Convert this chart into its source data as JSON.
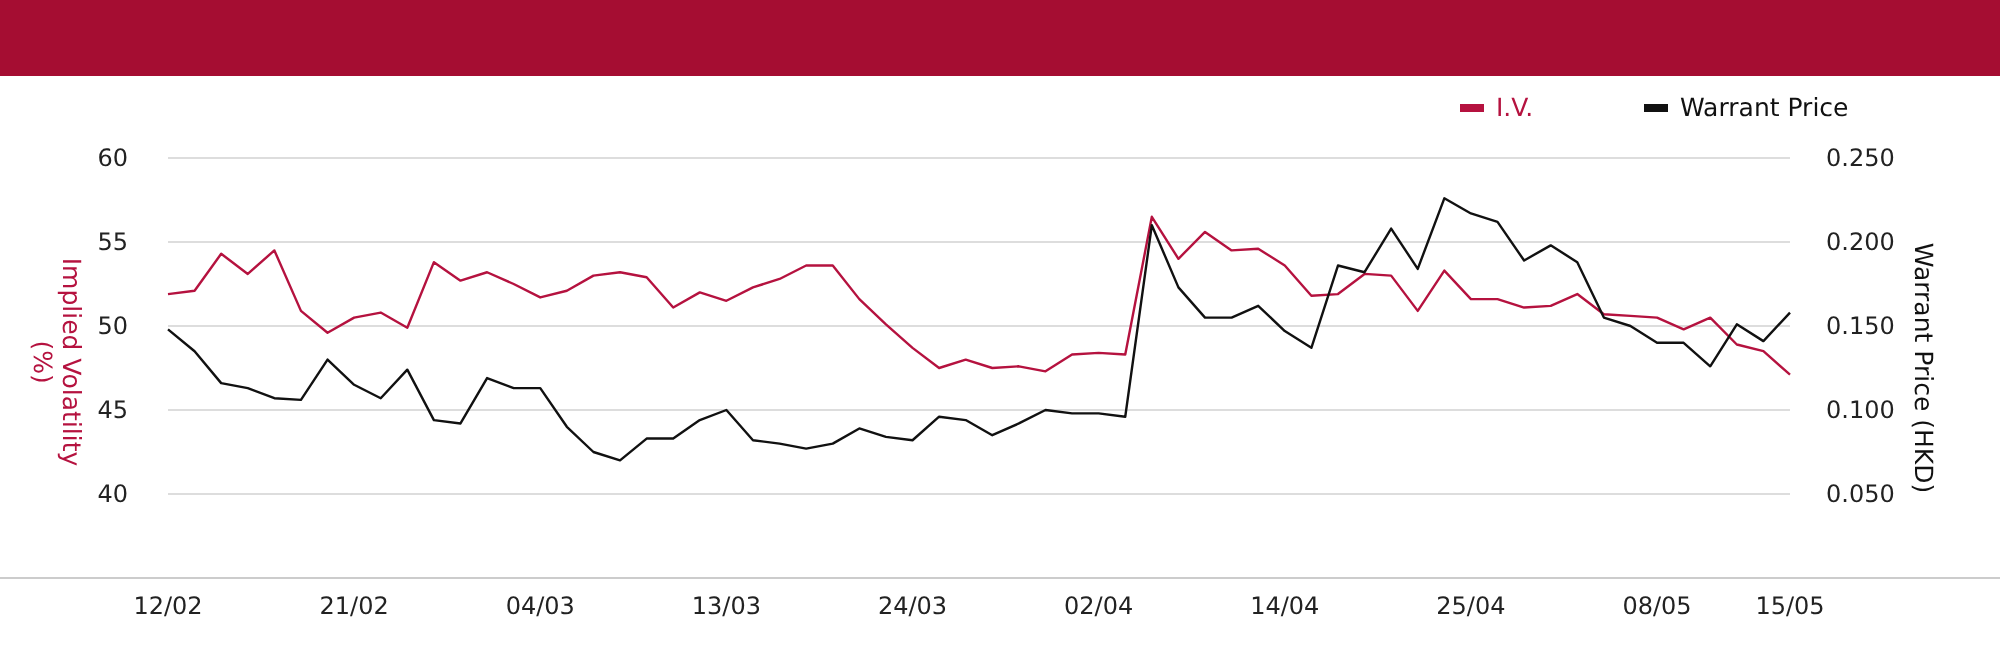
{
  "chart_data": {
    "type": "line",
    "ylabel": "Implied Volatility (%)",
    "y2label": "Warrant Price (HKD)",
    "categories": [
      "12/02",
      null,
      null,
      null,
      null,
      null,
      null,
      "21/02",
      null,
      null,
      null,
      null,
      null,
      null,
      "04/03",
      null,
      null,
      null,
      null,
      null,
      null,
      "13/03",
      null,
      null,
      null,
      null,
      null,
      null,
      "24/03",
      null,
      null,
      null,
      null,
      null,
      null,
      "02/04",
      null,
      null,
      null,
      null,
      null,
      null,
      "14/04",
      null,
      null,
      null,
      null,
      null,
      null,
      "25/04",
      null,
      null,
      null,
      null,
      null,
      null,
      "08/05",
      null,
      null,
      null,
      null,
      "15/05"
    ],
    "series": [
      {
        "name": "I.V.",
        "color": "#b5123f",
        "values": [
          51.9,
          52.1,
          54.3,
          53.1,
          54.5,
          50.9,
          49.6,
          50.5,
          50.8,
          49.9,
          53.8,
          52.7,
          53.2,
          52.5,
          51.7,
          52.1,
          53.0,
          53.2,
          52.9,
          51.1,
          52.0,
          51.5,
          52.3,
          52.8,
          53.6,
          53.6,
          51.6,
          50.1,
          48.7,
          47.5,
          48.0,
          47.5,
          47.6,
          47.3,
          48.3,
          48.4,
          48.3,
          56.5,
          54.0,
          55.6,
          54.5,
          54.6,
          53.6,
          51.8,
          51.9,
          53.1,
          53.0,
          50.9,
          53.3,
          51.6,
          51.6,
          51.1,
          51.2,
          51.9,
          50.7,
          50.6,
          50.5,
          49.8,
          50.5,
          48.9,
          48.5,
          47.1
        ]
      },
      {
        "name": "Warrant Price",
        "color": "#111111",
        "axis": "y2",
        "values": [
          0.148,
          0.135,
          0.116,
          0.113,
          0.107,
          0.106,
          0.13,
          0.115,
          0.107,
          0.124,
          0.094,
          0.092,
          0.119,
          0.113,
          0.113,
          0.09,
          0.075,
          0.07,
          0.083,
          0.083,
          0.094,
          0.1,
          0.082,
          0.08,
          0.077,
          0.08,
          0.089,
          0.084,
          0.082,
          0.096,
          0.094,
          0.085,
          0.092,
          0.1,
          0.098,
          0.098,
          0.096,
          0.21,
          0.173,
          0.155,
          0.155,
          0.162,
          0.147,
          0.137,
          0.186,
          0.182,
          0.208,
          0.184,
          0.226,
          0.217,
          0.212,
          0.189,
          0.198,
          0.188,
          0.155,
          0.15,
          0.14,
          0.14,
          0.126,
          0.151,
          0.141,
          0.158
        ]
      }
    ],
    "ylim": [
      35,
      60
    ],
    "yticks": [
      40,
      45,
      50,
      55,
      60
    ],
    "y2lim": [
      0,
      0.25
    ],
    "y2ticks": [
      {
        "value": 0.05,
        "label": "0.050"
      },
      {
        "value": 0.1,
        "label": "0.100"
      },
      {
        "value": 0.15,
        "label": "0.150"
      },
      {
        "value": 0.2,
        "label": "0.200"
      },
      {
        "value": 0.25,
        "label": "0.250"
      }
    ],
    "grid": "y",
    "legend": "top right"
  }
}
